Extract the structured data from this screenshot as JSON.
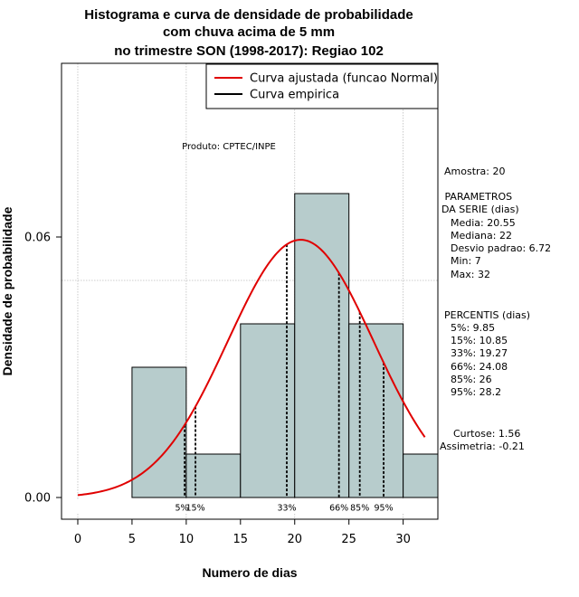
{
  "chart_data": {
    "type": "bar",
    "title": [
      "Histograma e curva de densidade de probabilidade",
      "com chuva acima de 5 mm",
      "no trimestre SON (1998-2017): Regiao 102"
    ],
    "xlabel": "Numero de dias",
    "ylabel": "Densidade de probabilidade",
    "xlim": [
      -1.5,
      33.2
    ],
    "ylim": [
      -0.005,
      0.1
    ],
    "x_ticks": [
      0,
      5,
      10,
      15,
      20,
      25,
      30
    ],
    "x_tick_labels": [
      "0",
      "5",
      "10",
      "15",
      "20",
      "25",
      "30"
    ],
    "y_ticks": [
      0.0,
      0.06
    ],
    "y_tick_labels": [
      "0.00",
      "0.06"
    ],
    "grid_x": [
      0,
      10,
      20,
      30
    ],
    "grid_y": [
      0.05,
      0.1
    ],
    "bins": [
      {
        "start": 5,
        "end": 10,
        "density": 0.03
      },
      {
        "start": 10,
        "end": 15,
        "density": 0.01
      },
      {
        "start": 15,
        "end": 20,
        "density": 0.04
      },
      {
        "start": 20,
        "end": 25,
        "density": 0.07
      },
      {
        "start": 25,
        "end": 30,
        "density": 0.04
      },
      {
        "start": 30,
        "end": 35,
        "density": 0.01
      }
    ],
    "normal_curve": {
      "mean": 20.55,
      "sd": 6.72,
      "x_range": [
        0,
        32
      ],
      "color": "#e00000"
    },
    "percentiles": [
      {
        "label": "5%",
        "value": 9.85
      },
      {
        "label": "15%",
        "value": 10.85
      },
      {
        "label": "33%",
        "value": 19.27
      },
      {
        "label": "66%",
        "value": 24.08
      },
      {
        "label": "85%",
        "value": 26
      },
      {
        "label": "95%",
        "value": 28.2
      }
    ],
    "legend": [
      {
        "label": "Curva ajustada (funcao Normal)",
        "color": "#e00000"
      },
      {
        "label": "Curva empirica",
        "color": "#000000"
      }
    ],
    "legend_position": "top-right",
    "bar_color": "#b7cccc",
    "product_label": "Produto: CPTEC/INPE"
  },
  "side_panel": {
    "amostra": "Amostra: 20",
    "params_title": [
      " PARAMETROS",
      "DA SERIE (dias)"
    ],
    "params": [
      "Media: 20.55",
      "Mediana: 22",
      "Desvio padrao: 6.72",
      "Min: 7",
      "Max: 32"
    ],
    "percentis_title": "PERCENTIS (dias)",
    "percentis": [
      "5%: 9.85",
      "15%: 10.85",
      "33%: 19.27",
      "66%: 24.08",
      "85%: 26",
      "95%: 28.2"
    ],
    "curtose": "Curtose: 1.56",
    "assimetria": "Assimetria: -0.21"
  }
}
